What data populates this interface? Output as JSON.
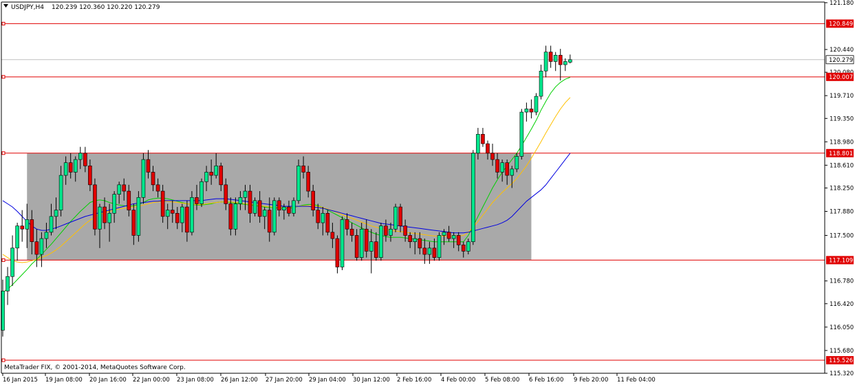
{
  "header": {
    "dropdown_icon": "triangle-down-icon",
    "symbol_timeframe": "USDJPY,H4",
    "ohlc": "120.239 120.360 120.220 120.279"
  },
  "watermark": "MetaTrader FIX, © 2001-2014, MetaQuotes Software Corp.",
  "colors": {
    "background": "#ffffff",
    "axis": "#000000",
    "bull_candle": "#00e68c",
    "bear_candle": "#e00000",
    "wick": "#000000",
    "horizontal_level": "#e00000",
    "level_label_bg": "#e00000",
    "current_price_line": "#c0c0c0",
    "range_box": "#a9a9a9",
    "ma_fast": "#00d000",
    "ma_mid": "#ffc000",
    "ma_slow": "#0000e0"
  },
  "chart_data": {
    "type": "candlestick",
    "symbol": "USDJPY",
    "timeframe": "H4",
    "ylim": [
      115.32,
      121.19
    ],
    "y_ticks": [
      121.18,
      120.44,
      120.08,
      119.71,
      119.35,
      118.98,
      118.61,
      118.25,
      117.88,
      117.5,
      116.78,
      116.42,
      116.05,
      115.68,
      115.32
    ],
    "x_tick_labels": [
      "16 Jan 2015",
      "19 Jan 08:00",
      "20 Jan 16:00",
      "22 Jan 00:00",
      "23 Jan 08:00",
      "26 Jan 12:00",
      "27 Jan 20:00",
      "29 Jan 04:00",
      "30 Jan 12:00",
      "2 Feb 16:00",
      "4 Feb 00:00",
      "5 Feb 08:00",
      "6 Feb 16:00",
      "9 Feb 20:00",
      "11 Feb 04:00"
    ],
    "horizontal_levels": [
      {
        "label": "120.849",
        "value": 120.849
      },
      {
        "label": "120.007",
        "value": 120.007
      },
      {
        "label": "118.801",
        "value": 118.801
      },
      {
        "label": "117.109",
        "value": 117.109
      },
      {
        "label": "115.526",
        "value": 115.526
      }
    ],
    "current_price": {
      "label": "120.279",
      "value": 120.279
    },
    "range_box": {
      "from_bar": 5,
      "to_bar": 109,
      "low": 117.109,
      "high": 118.801
    },
    "candles": [
      [
        116.0,
        116.8,
        115.9,
        116.62
      ],
      [
        116.62,
        117.0,
        116.4,
        116.85
      ],
      [
        116.85,
        117.5,
        116.7,
        117.3
      ],
      [
        117.3,
        117.7,
        117.1,
        117.65
      ],
      [
        117.65,
        117.9,
        117.4,
        117.6
      ],
      [
        117.6,
        118.0,
        117.3,
        117.75
      ],
      [
        117.75,
        117.9,
        117.2,
        117.4
      ],
      [
        117.4,
        117.6,
        117.0,
        117.2
      ],
      [
        117.2,
        117.55,
        117.0,
        117.45
      ],
      [
        117.45,
        117.7,
        117.3,
        117.55
      ],
      [
        117.55,
        118.0,
        117.5,
        117.8
      ],
      [
        117.8,
        118.1,
        117.6,
        117.9
      ],
      [
        117.9,
        118.6,
        117.8,
        118.45
      ],
      [
        118.45,
        118.75,
        118.3,
        118.65
      ],
      [
        118.65,
        118.8,
        118.4,
        118.5
      ],
      [
        118.5,
        118.75,
        118.35,
        118.7
      ],
      [
        118.7,
        118.9,
        118.55,
        118.8
      ],
      [
        118.8,
        118.9,
        118.5,
        118.6
      ],
      [
        118.6,
        118.7,
        118.2,
        118.3
      ],
      [
        118.3,
        118.4,
        117.5,
        117.6
      ],
      [
        117.6,
        118.0,
        117.3,
        117.95
      ],
      [
        117.95,
        118.1,
        117.6,
        117.7
      ],
      [
        117.7,
        118.0,
        117.4,
        117.85
      ],
      [
        117.85,
        118.2,
        117.7,
        118.15
      ],
      [
        118.15,
        118.35,
        118.0,
        118.3
      ],
      [
        118.3,
        118.4,
        118.05,
        118.2
      ],
      [
        118.2,
        118.3,
        117.8,
        117.9
      ],
      [
        117.9,
        118.0,
        117.35,
        117.5
      ],
      [
        117.5,
        118.2,
        117.4,
        118.1
      ],
      [
        118.1,
        118.8,
        118.0,
        118.7
      ],
      [
        118.7,
        118.85,
        118.4,
        118.5
      ],
      [
        118.5,
        118.6,
        118.2,
        118.3
      ],
      [
        118.3,
        118.4,
        118.1,
        118.2
      ],
      [
        118.2,
        118.3,
        117.7,
        117.8
      ],
      [
        117.8,
        118.0,
        117.6,
        117.9
      ],
      [
        117.9,
        118.05,
        117.7,
        117.85
      ],
      [
        117.85,
        117.95,
        117.6,
        117.7
      ],
      [
        117.7,
        118.0,
        117.55,
        117.95
      ],
      [
        117.95,
        118.05,
        117.4,
        117.55
      ],
      [
        117.55,
        118.2,
        117.5,
        118.1
      ],
      [
        118.1,
        118.3,
        117.9,
        118.0
      ],
      [
        118.0,
        118.4,
        117.95,
        118.35
      ],
      [
        118.35,
        118.6,
        118.2,
        118.5
      ],
      [
        118.5,
        118.7,
        118.3,
        118.45
      ],
      [
        118.45,
        118.8,
        118.4,
        118.6
      ],
      [
        118.6,
        118.65,
        118.2,
        118.3
      ],
      [
        118.3,
        118.4,
        117.9,
        118.0
      ],
      [
        118.0,
        118.1,
        117.5,
        117.6
      ],
      [
        117.6,
        118.1,
        117.5,
        118.0
      ],
      [
        118.0,
        118.2,
        117.9,
        118.1
      ],
      [
        118.1,
        118.3,
        117.9,
        118.2
      ],
      [
        118.2,
        118.3,
        117.7,
        117.85
      ],
      [
        117.85,
        118.1,
        117.8,
        118.05
      ],
      [
        118.05,
        118.2,
        117.7,
        117.8
      ],
      [
        117.8,
        117.95,
        117.6,
        117.9
      ],
      [
        117.9,
        118.1,
        117.4,
        117.55
      ],
      [
        117.55,
        118.1,
        117.5,
        118.05
      ],
      [
        118.05,
        118.1,
        117.8,
        117.9
      ],
      [
        117.9,
        118.0,
        117.75,
        117.95
      ],
      [
        117.95,
        118.05,
        117.8,
        117.85
      ],
      [
        117.85,
        118.1,
        117.8,
        118.05
      ],
      [
        118.05,
        118.7,
        118.0,
        118.6
      ],
      [
        118.6,
        118.75,
        118.4,
        118.5
      ],
      [
        118.5,
        118.6,
        118.1,
        118.2
      ],
      [
        118.2,
        118.3,
        117.8,
        117.9
      ],
      [
        117.9,
        118.0,
        117.6,
        117.7
      ],
      [
        117.7,
        117.95,
        117.5,
        117.85
      ],
      [
        117.85,
        117.9,
        117.5,
        117.55
      ],
      [
        117.55,
        117.7,
        117.3,
        117.45
      ],
      [
        117.45,
        117.5,
        116.9,
        117.0
      ],
      [
        117.0,
        117.8,
        116.95,
        117.75
      ],
      [
        117.75,
        117.85,
        117.5,
        117.6
      ],
      [
        117.6,
        117.7,
        117.4,
        117.5
      ],
      [
        117.5,
        117.6,
        117.1,
        117.15
      ],
      [
        117.15,
        117.7,
        117.1,
        117.6
      ],
      [
        117.6,
        117.75,
        117.15,
        117.25
      ],
      [
        117.25,
        117.6,
        116.9,
        117.4
      ],
      [
        117.4,
        117.55,
        117.1,
        117.15
      ],
      [
        117.15,
        117.7,
        117.1,
        117.65
      ],
      [
        117.65,
        117.75,
        117.4,
        117.5
      ],
      [
        117.5,
        117.7,
        117.4,
        117.6
      ],
      [
        117.6,
        118.0,
        117.55,
        117.95
      ],
      [
        117.95,
        118.0,
        117.55,
        117.65
      ],
      [
        117.65,
        117.75,
        117.4,
        117.5
      ],
      [
        117.5,
        117.55,
        117.3,
        117.4
      ],
      [
        117.4,
        117.55,
        117.2,
        117.45
      ],
      [
        117.45,
        117.55,
        117.2,
        117.3
      ],
      [
        117.3,
        117.45,
        117.05,
        117.2
      ],
      [
        117.2,
        117.4,
        117.05,
        117.3
      ],
      [
        117.3,
        117.45,
        117.1,
        117.15
      ],
      [
        117.15,
        117.55,
        117.1,
        117.5
      ],
      [
        117.5,
        117.6,
        117.35,
        117.55
      ],
      [
        117.55,
        117.65,
        117.4,
        117.45
      ],
      [
        117.45,
        117.55,
        117.3,
        117.5
      ],
      [
        117.5,
        117.55,
        117.25,
        117.35
      ],
      [
        117.35,
        117.4,
        117.15,
        117.25
      ],
      [
        117.25,
        117.45,
        117.2,
        117.4
      ],
      [
        117.4,
        118.85,
        117.35,
        118.8
      ],
      [
        118.8,
        119.2,
        118.7,
        119.1
      ],
      [
        119.1,
        119.2,
        118.9,
        118.95
      ],
      [
        118.95,
        119.0,
        118.7,
        118.8
      ],
      [
        118.8,
        118.95,
        118.6,
        118.7
      ],
      [
        118.7,
        118.8,
        118.4,
        118.5
      ],
      [
        118.5,
        118.7,
        118.35,
        118.65
      ],
      [
        118.65,
        118.7,
        118.3,
        118.45
      ],
      [
        118.45,
        118.6,
        118.25,
        118.55
      ],
      [
        118.55,
        118.8,
        118.5,
        118.75
      ],
      [
        118.75,
        119.5,
        118.7,
        119.45
      ],
      [
        119.45,
        119.6,
        119.3,
        119.5
      ],
      [
        119.5,
        119.65,
        119.35,
        119.45
      ],
      [
        119.45,
        119.75,
        119.4,
        119.7
      ],
      [
        119.7,
        120.2,
        119.65,
        120.1
      ],
      [
        120.1,
        120.5,
        120.0,
        120.4
      ],
      [
        120.4,
        120.5,
        120.15,
        120.25
      ],
      [
        120.25,
        120.4,
        120.1,
        120.35
      ],
      [
        120.35,
        120.45,
        119.95,
        120.2
      ],
      [
        120.2,
        120.3,
        120.1,
        120.25
      ],
      [
        120.239,
        120.36,
        120.22,
        120.279
      ]
    ],
    "moving_averages": [
      {
        "color": "#00d000",
        "values": [
          116.6,
          116.65,
          116.72,
          116.8,
          116.88,
          116.96,
          117.05,
          117.12,
          117.2,
          117.28,
          117.36,
          117.45,
          117.54,
          117.63,
          117.72,
          117.8,
          117.88,
          117.95,
          118.02,
          118.05,
          118.06,
          118.05,
          118.02,
          118.0,
          117.98,
          117.97,
          117.96,
          117.97,
          117.99,
          118.02,
          118.06,
          118.08,
          118.09,
          118.09,
          118.08,
          118.06,
          118.04,
          118.02,
          118.0,
          117.99,
          117.98,
          117.98,
          117.99,
          118.0,
          118.02,
          118.03,
          118.03,
          118.02,
          118.01,
          118.0,
          117.99,
          117.98,
          117.97,
          117.96,
          117.95,
          117.94,
          117.94,
          117.93,
          117.93,
          117.93,
          117.94,
          117.96,
          117.98,
          117.99,
          117.99,
          117.97,
          117.94,
          117.9,
          117.86,
          117.82,
          117.78,
          117.74,
          117.7,
          117.66,
          117.62,
          117.58,
          117.55,
          117.52,
          117.5,
          117.48,
          117.47,
          117.47,
          117.47,
          117.46,
          117.45,
          117.44,
          117.43,
          117.42,
          117.41,
          117.4,
          117.4,
          117.4,
          117.4,
          117.4,
          117.4,
          117.4,
          117.5,
          117.65,
          117.8,
          117.95,
          118.1,
          118.25,
          118.38,
          118.5,
          118.6,
          118.7,
          118.8,
          118.92,
          119.05,
          119.18,
          119.32,
          119.48,
          119.62,
          119.75,
          119.85,
          119.92,
          119.97,
          120.0
        ]
      },
      {
        "color": "#ffc000",
        "values": [
          117.2,
          117.15,
          117.1,
          117.08,
          117.07,
          117.08,
          117.1,
          117.12,
          117.15,
          117.18,
          117.22,
          117.27,
          117.33,
          117.4,
          117.47,
          117.54,
          117.61,
          117.68,
          117.74,
          117.79,
          117.83,
          117.86,
          117.88,
          117.9,
          117.92,
          117.93,
          117.94,
          117.95,
          117.96,
          117.98,
          118.0,
          118.02,
          118.03,
          118.04,
          118.04,
          118.03,
          118.02,
          118.01,
          118.0,
          117.99,
          117.99,
          117.99,
          118.0,
          118.01,
          118.02,
          118.03,
          118.03,
          118.03,
          118.02,
          118.01,
          118.0,
          117.99,
          117.98,
          117.97,
          117.96,
          117.95,
          117.95,
          117.94,
          117.94,
          117.94,
          117.95,
          117.96,
          117.97,
          117.97,
          117.97,
          117.96,
          117.94,
          117.92,
          117.89,
          117.86,
          117.83,
          117.8,
          117.77,
          117.74,
          117.71,
          117.68,
          117.65,
          117.63,
          117.61,
          117.59,
          117.58,
          117.57,
          117.56,
          117.55,
          117.54,
          117.53,
          117.52,
          117.51,
          117.5,
          117.49,
          117.49,
          117.49,
          117.49,
          117.49,
          117.49,
          117.5,
          117.55,
          117.63,
          117.72,
          117.82,
          117.92,
          118.02,
          118.1,
          118.18,
          118.25,
          118.32,
          118.4,
          118.5,
          118.6,
          118.72,
          118.85,
          118.98,
          119.12,
          119.25,
          119.38,
          119.5,
          119.6,
          119.68
        ]
      },
      {
        "color": "#0000e0",
        "values": [
          118.05,
          118.0,
          117.95,
          117.88,
          117.8,
          117.72,
          117.65,
          117.6,
          117.58,
          117.58,
          117.6,
          117.62,
          117.65,
          117.68,
          117.71,
          117.74,
          117.77,
          117.8,
          117.82,
          117.84,
          117.86,
          117.88,
          117.9,
          117.92,
          117.94,
          117.96,
          117.98,
          118.0,
          118.01,
          118.02,
          118.03,
          118.04,
          118.04,
          118.05,
          118.05,
          118.05,
          118.05,
          118.05,
          118.05,
          118.05,
          118.05,
          118.05,
          118.06,
          118.07,
          118.08,
          118.08,
          118.08,
          118.07,
          118.06,
          118.05,
          118.04,
          118.03,
          118.02,
          118.01,
          118.0,
          117.99,
          117.98,
          117.97,
          117.96,
          117.96,
          117.96,
          117.96,
          117.96,
          117.96,
          117.95,
          117.94,
          117.93,
          117.91,
          117.89,
          117.87,
          117.85,
          117.83,
          117.81,
          117.79,
          117.77,
          117.75,
          117.73,
          117.71,
          117.69,
          117.68,
          117.67,
          117.66,
          117.65,
          117.64,
          117.63,
          117.62,
          117.61,
          117.6,
          117.59,
          117.58,
          117.57,
          117.56,
          117.55,
          117.54,
          117.54,
          117.54,
          117.55,
          117.57,
          117.59,
          117.61,
          117.63,
          117.65,
          117.67,
          117.7,
          117.74,
          117.8,
          117.88,
          117.96,
          118.04,
          118.1,
          118.16,
          118.22,
          118.3,
          118.4,
          118.5,
          118.6,
          118.7,
          118.8
        ]
      }
    ]
  }
}
